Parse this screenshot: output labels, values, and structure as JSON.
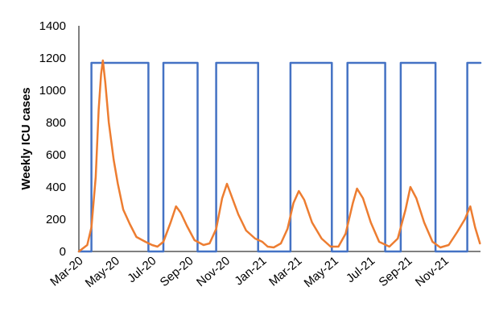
{
  "chart_data": {
    "type": "line",
    "title": "",
    "xlabel": "",
    "ylabel": "Weekly ICU cases",
    "ylim": [
      0,
      1400
    ],
    "yticks": [
      0,
      200,
      400,
      600,
      800,
      1000,
      1200,
      1400
    ],
    "xlim": [
      "2020-03-01",
      "2021-12-31"
    ],
    "xticks": [
      {
        "label": "Mar-20",
        "date": "2020-03-01"
      },
      {
        "label": "May-20",
        "date": "2020-05-01"
      },
      {
        "label": "Jul-20",
        "date": "2020-07-01"
      },
      {
        "label": "Sep-20",
        "date": "2020-09-01"
      },
      {
        "label": "Nov-20",
        "date": "2020-11-01"
      },
      {
        "label": "Jan-21",
        "date": "2021-01-01"
      },
      {
        "label": "Mar-21",
        "date": "2021-03-01"
      },
      {
        "label": "May-21",
        "date": "2021-05-01"
      },
      {
        "label": "Jul-21",
        "date": "2021-07-01"
      },
      {
        "label": "Sep-21",
        "date": "2021-09-01"
      },
      {
        "label": "Nov-21",
        "date": "2021-11-01"
      }
    ],
    "grid": false,
    "legend": "none",
    "series": [
      {
        "color": "#4472C4",
        "style": "step",
        "points": [
          [
            "2020-03-01",
            0
          ],
          [
            "2020-03-22",
            0
          ],
          [
            "2020-03-22",
            1170
          ],
          [
            "2020-06-25",
            1170
          ],
          [
            "2020-06-25",
            0
          ],
          [
            "2020-07-20",
            0
          ],
          [
            "2020-07-20",
            1170
          ],
          [
            "2020-09-15",
            1170
          ],
          [
            "2020-09-15",
            0
          ],
          [
            "2020-10-16",
            0
          ],
          [
            "2020-10-16",
            1170
          ],
          [
            "2020-12-25",
            1170
          ],
          [
            "2020-12-25",
            0
          ],
          [
            "2021-02-17",
            0
          ],
          [
            "2021-02-17",
            1170
          ],
          [
            "2021-04-27",
            1170
          ],
          [
            "2021-04-27",
            0
          ],
          [
            "2021-05-23",
            0
          ],
          [
            "2021-05-23",
            1170
          ],
          [
            "2021-07-25",
            1170
          ],
          [
            "2021-07-25",
            0
          ],
          [
            "2021-08-20",
            0
          ],
          [
            "2021-08-20",
            1170
          ],
          [
            "2021-10-17",
            1170
          ],
          [
            "2021-10-17",
            0
          ],
          [
            "2021-12-09",
            0
          ],
          [
            "2021-12-09",
            1170
          ],
          [
            "2021-12-31",
            1170
          ]
        ]
      },
      {
        "color": "#ED7D31",
        "style": "line",
        "points": [
          [
            "2020-03-01",
            0
          ],
          [
            "2020-03-15",
            40
          ],
          [
            "2020-03-22",
            150
          ],
          [
            "2020-03-29",
            460
          ],
          [
            "2020-04-03",
            880
          ],
          [
            "2020-04-07",
            1100
          ],
          [
            "2020-04-10",
            1185
          ],
          [
            "2020-04-14",
            1050
          ],
          [
            "2020-04-20",
            800
          ],
          [
            "2020-04-28",
            570
          ],
          [
            "2020-05-05",
            420
          ],
          [
            "2020-05-14",
            260
          ],
          [
            "2020-05-25",
            170
          ],
          [
            "2020-06-05",
            90
          ],
          [
            "2020-06-20",
            60
          ],
          [
            "2020-07-01",
            40
          ],
          [
            "2020-07-10",
            30
          ],
          [
            "2020-07-20",
            60
          ],
          [
            "2020-08-01",
            180
          ],
          [
            "2020-08-10",
            280
          ],
          [
            "2020-08-18",
            240
          ],
          [
            "2020-08-28",
            160
          ],
          [
            "2020-09-10",
            70
          ],
          [
            "2020-09-25",
            40
          ],
          [
            "2020-10-05",
            50
          ],
          [
            "2020-10-16",
            140
          ],
          [
            "2020-10-26",
            330
          ],
          [
            "2020-11-03",
            420
          ],
          [
            "2020-11-10",
            350
          ],
          [
            "2020-11-22",
            230
          ],
          [
            "2020-12-05",
            130
          ],
          [
            "2020-12-20",
            80
          ],
          [
            "2021-01-01",
            60
          ],
          [
            "2021-01-10",
            30
          ],
          [
            "2021-01-20",
            25
          ],
          [
            "2021-02-01",
            50
          ],
          [
            "2021-02-12",
            140
          ],
          [
            "2021-02-22",
            300
          ],
          [
            "2021-03-03",
            375
          ],
          [
            "2021-03-12",
            320
          ],
          [
            "2021-03-25",
            180
          ],
          [
            "2021-04-10",
            80
          ],
          [
            "2021-04-25",
            30
          ],
          [
            "2021-05-08",
            30
          ],
          [
            "2021-05-20",
            110
          ],
          [
            "2021-06-01",
            300
          ],
          [
            "2021-06-08",
            390
          ],
          [
            "2021-06-18",
            330
          ],
          [
            "2021-07-01",
            180
          ],
          [
            "2021-07-15",
            60
          ],
          [
            "2021-08-01",
            30
          ],
          [
            "2021-08-15",
            80
          ],
          [
            "2021-08-28",
            260
          ],
          [
            "2021-09-05",
            400
          ],
          [
            "2021-09-15",
            330
          ],
          [
            "2021-09-28",
            180
          ],
          [
            "2021-10-12",
            60
          ],
          [
            "2021-10-25",
            25
          ],
          [
            "2021-11-08",
            40
          ],
          [
            "2021-11-22",
            120
          ],
          [
            "2021-12-05",
            200
          ],
          [
            "2021-12-14",
            280
          ],
          [
            "2021-12-22",
            150
          ],
          [
            "2021-12-30",
            50
          ]
        ]
      }
    ]
  }
}
